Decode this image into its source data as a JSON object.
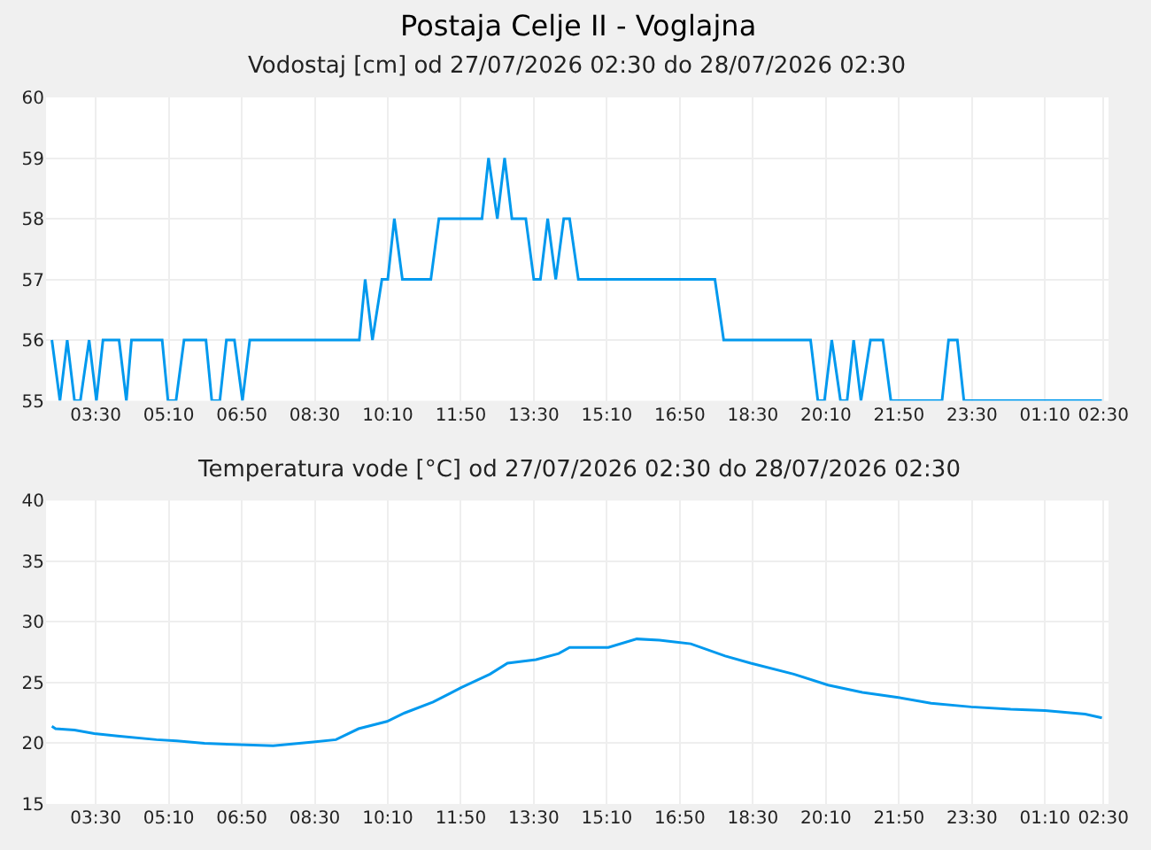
{
  "chart_data": [
    {
      "type": "line",
      "title": "Postaja Celje II - Voglajna",
      "subtitle": "Vodostaj [cm] od 27/07/2026 02:30 do 28/07/2026 02:30",
      "x": [
        "2026-07-27T02:30",
        "2026-07-27T02:41",
        "2026-07-27T02:51",
        "2026-07-27T03:01",
        "2026-07-27T03:09",
        "2026-07-27T03:21",
        "2026-07-27T03:31",
        "2026-07-27T03:40",
        "2026-07-27T04:02",
        "2026-07-27T04:12",
        "2026-07-27T04:19",
        "2026-07-27T05:01",
        "2026-07-27T05:09",
        "2026-07-27T05:20",
        "2026-07-27T05:31",
        "2026-07-27T06:01",
        "2026-07-27T06:09",
        "2026-07-27T06:20",
        "2026-07-27T06:29",
        "2026-07-27T06:40",
        "2026-07-27T06:51",
        "2026-07-27T07:01",
        "2026-07-27T09:31",
        "2026-07-27T09:39",
        "2026-07-27T09:49",
        "2026-07-27T10:02",
        "2026-07-27T10:10",
        "2026-07-27T10:19",
        "2026-07-27T10:30",
        "2026-07-27T11:09",
        "2026-07-27T11:20",
        "2026-07-27T12:19",
        "2026-07-27T12:28",
        "2026-07-27T12:40",
        "2026-07-27T12:50",
        "2026-07-27T13:00",
        "2026-07-27T13:19",
        "2026-07-27T13:30",
        "2026-07-27T13:39",
        "2026-07-27T13:49",
        "2026-07-27T14:00",
        "2026-07-27T14:11",
        "2026-07-27T14:19",
        "2026-07-27T14:31",
        "2026-07-27T17:38",
        "2026-07-27T17:50",
        "2026-07-27T19:49",
        "2026-07-27T19:59",
        "2026-07-27T20:08",
        "2026-07-27T20:18",
        "2026-07-27T20:30",
        "2026-07-27T20:39",
        "2026-07-27T20:48",
        "2026-07-27T20:58",
        "2026-07-27T21:11",
        "2026-07-27T21:28",
        "2026-07-27T21:39",
        "2026-07-27T22:49",
        "2026-07-27T22:58",
        "2026-07-27T23:10",
        "2026-07-27T23:19",
        "2026-07-28T02:28"
      ],
      "series": [
        {
          "color": "#0099ee",
          "values": [
            56,
            55,
            56,
            55,
            55,
            56,
            55,
            56,
            56,
            55,
            56,
            56,
            55,
            55,
            56,
            56,
            55,
            55,
            56,
            56,
            55,
            56,
            56,
            57,
            56,
            57,
            57,
            58,
            57,
            57,
            58,
            58,
            59,
            58,
            59,
            58,
            58,
            57,
            57,
            58,
            57,
            58,
            58,
            57,
            57,
            56,
            56,
            55,
            55,
            56,
            55,
            55,
            56,
            55,
            56,
            56,
            55,
            55,
            56,
            56,
            55,
            55
          ]
        }
      ],
      "xlim": [
        "2026-07-27T02:22",
        "2026-07-28T02:37"
      ],
      "xticks": [
        {
          "value": "2026-07-27T03:30",
          "label": "03:30"
        },
        {
          "value": "2026-07-27T05:10",
          "label": "05:10"
        },
        {
          "value": "2026-07-27T06:50",
          "label": "06:50"
        },
        {
          "value": "2026-07-27T08:30",
          "label": "08:30"
        },
        {
          "value": "2026-07-27T10:10",
          "label": "10:10"
        },
        {
          "value": "2026-07-27T11:50",
          "label": "11:50"
        },
        {
          "value": "2026-07-27T13:30",
          "label": "13:30"
        },
        {
          "value": "2026-07-27T15:10",
          "label": "15:10"
        },
        {
          "value": "2026-07-27T16:50",
          "label": "16:50"
        },
        {
          "value": "2026-07-27T18:30",
          "label": "18:30"
        },
        {
          "value": "2026-07-27T20:10",
          "label": "20:10"
        },
        {
          "value": "2026-07-27T21:50",
          "label": "21:50"
        },
        {
          "value": "2026-07-27T23:30",
          "label": "23:30"
        },
        {
          "value": "2026-07-28T01:10",
          "label": "01:10"
        },
        {
          "value": "2026-07-28T02:30",
          "label": "02:30"
        }
      ],
      "ylim": [
        55,
        60
      ],
      "yticks": [
        55,
        56,
        57,
        58,
        59,
        60
      ],
      "grid": true
    },
    {
      "type": "line",
      "title": "Temperatura vode [°C] od 27/07/2026 02:30 do 28/07/2026 02:30",
      "x": [
        "2026-07-27T02:30",
        "2026-07-27T02:35",
        "2026-07-27T03:01",
        "2026-07-27T03:28",
        "2026-07-27T04:00",
        "2026-07-27T04:53",
        "2026-07-27T05:21",
        "2026-07-27T05:59",
        "2026-07-27T06:38",
        "2026-07-27T07:33",
        "2026-07-27T08:28",
        "2026-07-27T08:59",
        "2026-07-27T09:30",
        "2026-07-27T10:09",
        "2026-07-27T10:33",
        "2026-07-27T11:12",
        "2026-07-27T11:51",
        "2026-07-27T12:30",
        "2026-07-27T12:54",
        "2026-07-27T13:33",
        "2026-07-27T14:04",
        "2026-07-27T14:19",
        "2026-07-27T15:12",
        "2026-07-27T15:51",
        "2026-07-27T16:22",
        "2026-07-27T17:05",
        "2026-07-27T17:52",
        "2026-07-27T18:27",
        "2026-07-27T19:26",
        "2026-07-27T20:13",
        "2026-07-27T21:00",
        "2026-07-27T21:47",
        "2026-07-27T22:34",
        "2026-07-27T23:29",
        "2026-07-28T00:23",
        "2026-07-28T01:10",
        "2026-07-28T02:05",
        "2026-07-28T02:28"
      ],
      "series": [
        {
          "color": "#0099ee",
          "values": [
            21.4,
            21.2,
            21.1,
            20.8,
            20.6,
            20.3,
            20.2,
            20.0,
            19.9,
            19.8,
            20.1,
            20.3,
            21.2,
            21.8,
            22.5,
            23.4,
            24.6,
            25.7,
            26.6,
            26.9,
            27.4,
            27.9,
            27.9,
            28.6,
            28.5,
            28.2,
            27.2,
            26.6,
            25.7,
            24.8,
            24.2,
            23.8,
            23.3,
            23.0,
            22.8,
            22.7,
            22.4,
            22.1
          ]
        }
      ],
      "xlim": [
        "2026-07-27T02:22",
        "2026-07-28T02:37"
      ],
      "xticks": [
        {
          "value": "2026-07-27T03:30",
          "label": "03:30"
        },
        {
          "value": "2026-07-27T05:10",
          "label": "05:10"
        },
        {
          "value": "2026-07-27T06:50",
          "label": "06:50"
        },
        {
          "value": "2026-07-27T08:30",
          "label": "08:30"
        },
        {
          "value": "2026-07-27T10:10",
          "label": "10:10"
        },
        {
          "value": "2026-07-27T11:50",
          "label": "11:50"
        },
        {
          "value": "2026-07-27T13:30",
          "label": "13:30"
        },
        {
          "value": "2026-07-27T15:10",
          "label": "15:10"
        },
        {
          "value": "2026-07-27T16:50",
          "label": "16:50"
        },
        {
          "value": "2026-07-27T18:30",
          "label": "18:30"
        },
        {
          "value": "2026-07-27T20:10",
          "label": "20:10"
        },
        {
          "value": "2026-07-27T21:50",
          "label": "21:50"
        },
        {
          "value": "2026-07-27T23:30",
          "label": "23:30"
        },
        {
          "value": "2026-07-28T01:10",
          "label": "01:10"
        },
        {
          "value": "2026-07-28T02:30",
          "label": "02:30"
        }
      ],
      "ylim": [
        15,
        40
      ],
      "yticks": [
        15,
        20,
        25,
        30,
        35,
        40
      ],
      "grid": true
    }
  ]
}
